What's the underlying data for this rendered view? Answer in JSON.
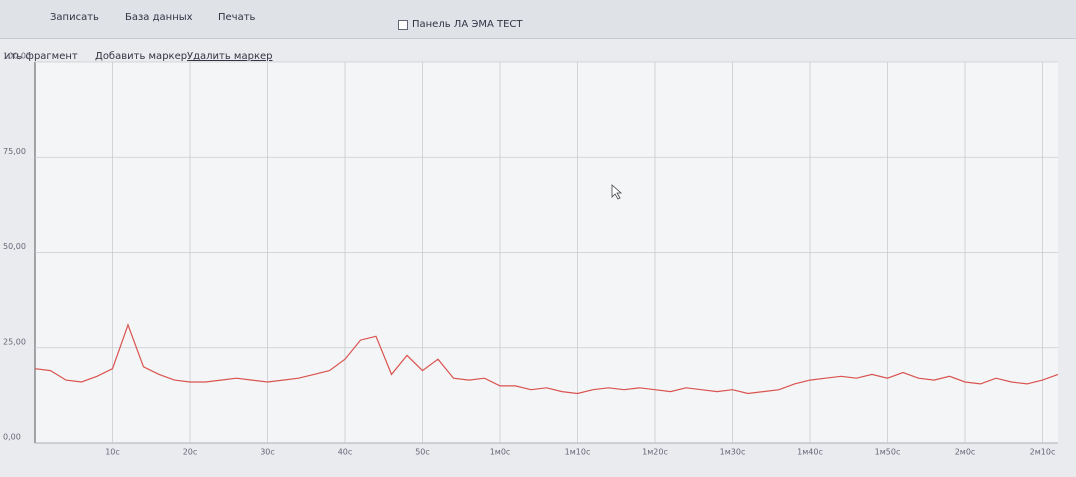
{
  "toolbar": {
    "buttons": [
      "Записать",
      "База данных",
      "Печать"
    ],
    "checkbox": "Панель ЛА ЭМА ТЕСТ"
  },
  "chart_toolbar": {
    "buttons": [
      "ить фрагмент",
      "Добавить маркер",
      "Удалить маркер"
    ]
  },
  "chart_data": {
    "type": "line",
    "x": [
      0,
      2,
      4,
      6,
      8,
      10,
      12,
      14,
      16,
      18,
      20,
      22,
      24,
      26,
      28,
      30,
      32,
      34,
      36,
      38,
      40,
      42,
      44,
      46,
      48,
      50,
      52,
      54,
      56,
      58,
      60,
      62,
      64,
      66,
      68,
      70,
      72,
      74,
      76,
      78,
      80,
      82,
      84,
      86,
      88,
      90,
      92,
      94,
      96,
      98,
      100,
      102,
      104,
      106,
      108,
      110,
      112,
      114,
      116,
      118,
      120,
      122,
      124,
      126,
      128,
      130,
      132
    ],
    "series": [
      {
        "color": "#d9534f",
        "values": [
          19.5,
          19,
          16.5,
          16,
          17.5,
          19.5,
          31,
          20,
          18,
          16.5,
          16,
          16,
          16.5,
          17,
          16.5,
          16,
          16.5,
          17,
          18,
          19,
          22,
          27,
          28,
          18,
          23,
          19,
          22,
          17,
          16.5,
          17,
          15,
          15,
          14,
          14.5,
          13.5,
          13,
          14,
          14.5,
          14,
          14.5,
          14,
          13.5,
          14.5,
          14,
          13.5,
          14,
          13,
          13.5,
          14,
          15.5,
          16.5,
          17,
          17.5,
          17,
          18,
          17,
          18.5,
          17,
          16.5,
          17.5,
          16,
          15.5,
          17,
          16,
          15.5,
          16.5,
          18
        ]
      }
    ],
    "xlim": [
      0,
      132
    ],
    "ylim": [
      0,
      100
    ],
    "xticks": [
      {
        "value": 10,
        "label": "10с"
      },
      {
        "value": 20,
        "label": "20с"
      },
      {
        "value": 30,
        "label": "30с"
      },
      {
        "value": 40,
        "label": "40с"
      },
      {
        "value": 50,
        "label": "50с"
      },
      {
        "value": 60,
        "label": "1м0с"
      },
      {
        "value": 70,
        "label": "1м10с"
      },
      {
        "value": 80,
        "label": "1м20с"
      },
      {
        "value": 90,
        "label": "1м30с"
      },
      {
        "value": 100,
        "label": "1м40с"
      },
      {
        "value": 110,
        "label": "1м50с"
      },
      {
        "value": 120,
        "label": "2м0с"
      },
      {
        "value": 130,
        "label": "2м10с"
      }
    ],
    "yticks": [
      {
        "value": 0,
        "label": "0,00"
      },
      {
        "value": 25,
        "label": "25,00"
      },
      {
        "value": 50,
        "label": "50,00"
      },
      {
        "value": 75,
        "label": "75,00"
      },
      {
        "value": 100,
        "label": "100,00"
      }
    ],
    "grid": true
  }
}
